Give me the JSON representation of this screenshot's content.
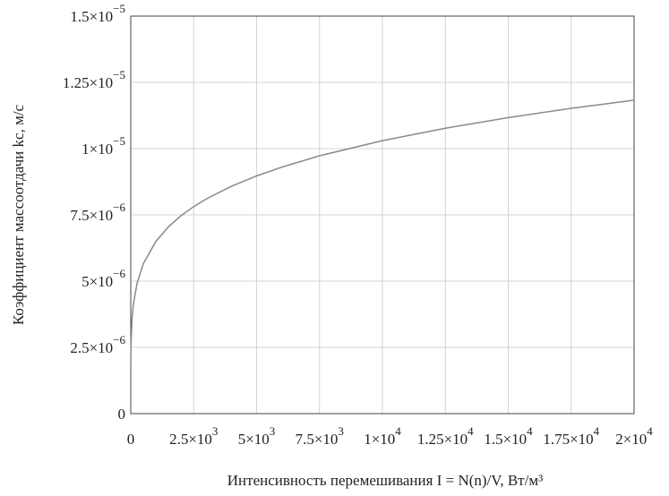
{
  "chart_data": {
    "type": "line",
    "xlabel": "Интенсивность перемешивания I = N(n)/V, Вт/м³",
    "ylabel": "Коэффициент массоотдачи kc, м/с",
    "x": [
      1,
      10,
      50,
      100,
      250,
      500,
      1000,
      1500,
      2000,
      2500,
      3000,
      4000,
      5000,
      6000,
      7500,
      10000,
      12500,
      15000,
      17500,
      20000
    ],
    "series": [
      {
        "name": "kc",
        "color": "#8a8a8a",
        "values": [
          1.63e-06,
          2.59e-06,
          3.57e-06,
          4.1e-06,
          4.92e-06,
          5.66e-06,
          6.5e-06,
          7.05e-06,
          7.47e-06,
          7.81e-06,
          8.1e-06,
          8.58e-06,
          8.97e-06,
          9.3e-06,
          9.73e-06,
          1.03e-05,
          1.077e-05,
          1.117e-05,
          1.152e-05,
          1.183e-05
        ]
      }
    ],
    "xlim": [
      0,
      20000
    ],
    "ylim": [
      0,
      1.5e-05
    ],
    "xticks": [
      0,
      {
        "value": 2500,
        "label": "2.5×10",
        "exponent": "3"
      },
      {
        "value": 5000,
        "label": "5×10",
        "exponent": "3"
      },
      {
        "value": 7500,
        "label": "7.5×10",
        "exponent": "3"
      },
      {
        "value": 10000,
        "label": "1×10",
        "exponent": "4"
      },
      {
        "value": 12500,
        "label": "1.25×10",
        "exponent": "4"
      },
      {
        "value": 15000,
        "label": "1.5×10",
        "exponent": "4"
      },
      {
        "value": 17500,
        "label": "1.75×10",
        "exponent": "4"
      },
      {
        "value": 20000,
        "label": "2×10",
        "exponent": "4"
      }
    ],
    "yticks": [
      0,
      {
        "value": 2.5e-06,
        "label": "2.5×10",
        "exponent": "−6"
      },
      {
        "value": 5e-06,
        "label": "5×10",
        "exponent": "−6"
      },
      {
        "value": 7.5e-06,
        "label": "7.5×10",
        "exponent": "−6"
      },
      {
        "value": 1e-05,
        "label": "1×10",
        "exponent": "−5"
      },
      {
        "value": 1.25e-05,
        "label": "1.25×10",
        "exponent": "−5"
      },
      {
        "value": 1.5e-05,
        "label": "1.5×10",
        "exponent": "−5"
      }
    ],
    "grid": true
  }
}
